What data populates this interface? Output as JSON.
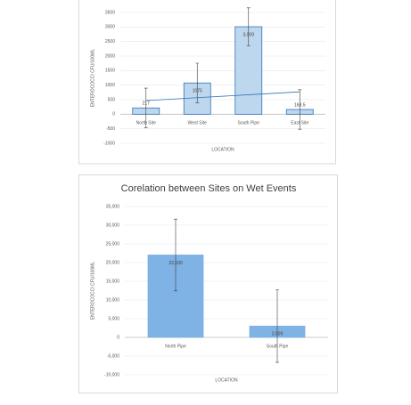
{
  "chart_data": [
    {
      "type": "bar",
      "y_label": "ENTEROCOCCI CFU/100ML",
      "x_label": "LOCATION",
      "categories": [
        "North Site",
        "West Site",
        "South Pipe",
        "East Site"
      ],
      "values": [
        217,
        1075,
        3009,
        163.5
      ],
      "value_labels": [
        "217",
        "1075",
        "3,009",
        "163.5"
      ],
      "errors": [
        680,
        680,
        650,
        680
      ],
      "color": "#bdd7ee",
      "edge_color": "#2e75b6",
      "trendline": {
        "color": "#2e75b6",
        "values": [
          470,
          570,
          670,
          770
        ]
      },
      "ylim": [
        -1000,
        3500
      ],
      "yticks": [
        -1000,
        -500,
        0,
        500,
        1000,
        1500,
        2000,
        2500,
        3000,
        3500
      ],
      "grid": true
    },
    {
      "type": "bar",
      "title": "Corelation  between  Sites on Wet Events",
      "y_label": "ENTEROCOCCI CFU/100ML",
      "x_label": "LOCATION",
      "categories": [
        "North Pipe",
        "South Pipe"
      ],
      "values": [
        22030,
        3009
      ],
      "value_labels": [
        "22,030",
        "3,009"
      ],
      "errors": [
        9600,
        9700
      ],
      "color": "#7fb2e5",
      "edge_color": "#7fb2e5",
      "ylim": [
        -10000,
        35000
      ],
      "yticks": [
        {
          "value": -10000,
          "label": "-10,000"
        },
        {
          "value": -5000,
          "label": "-5,000"
        },
        0,
        {
          "value": 5000,
          "label": "5,000"
        },
        {
          "value": 10000,
          "label": "10,000"
        },
        {
          "value": 15000,
          "label": "15,000"
        },
        {
          "value": 20000,
          "label": "20,000"
        },
        {
          "value": 25000,
          "label": "25,000"
        },
        {
          "value": 30000,
          "label": "30,000"
        },
        {
          "value": 35000,
          "label": "35,000"
        }
      ],
      "grid": true
    }
  ]
}
